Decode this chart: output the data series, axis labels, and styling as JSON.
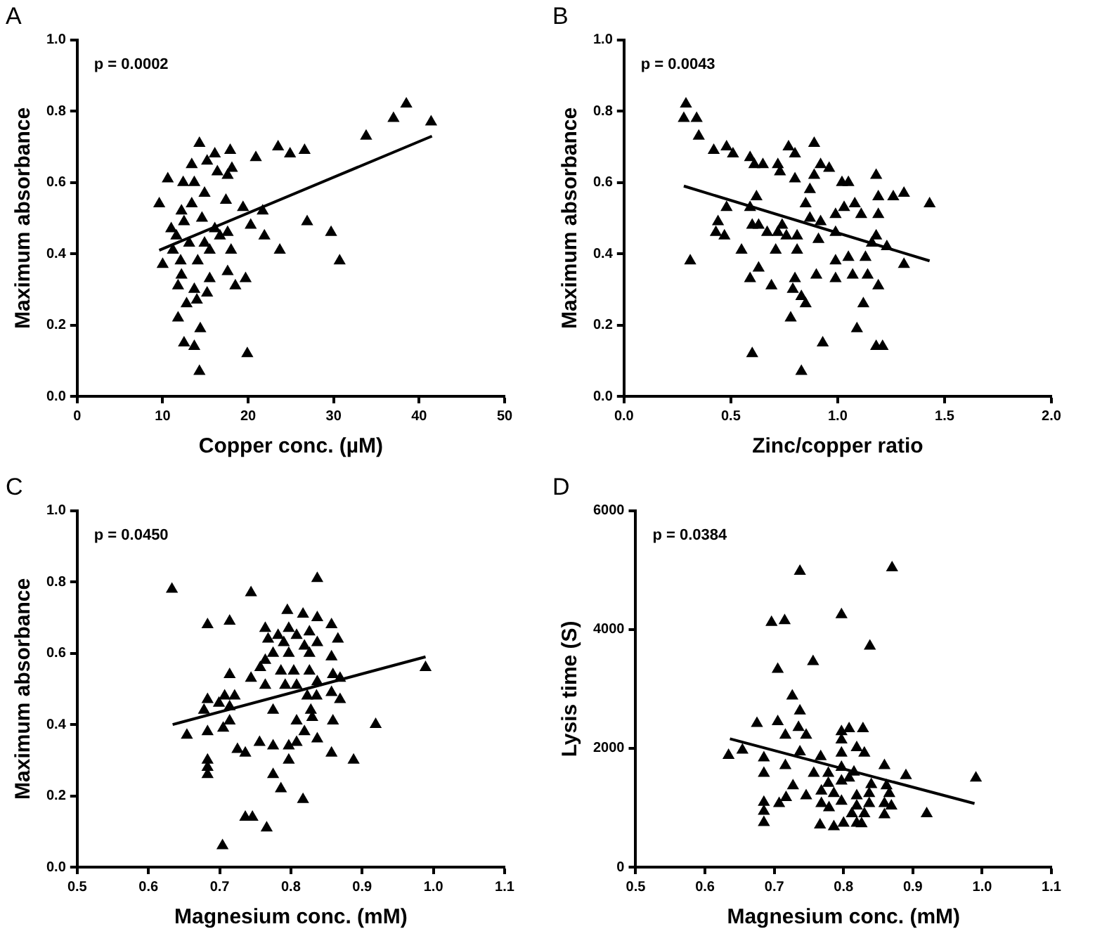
{
  "chart_data": [
    {
      "type": "scatter",
      "title": "A",
      "xlabel": "Copper conc. (µM)",
      "ylabel": "Maximum absorbance",
      "annotations": [
        "p = 0.0002"
      ],
      "grid": false,
      "legend": false,
      "xlim": [
        0,
        50
      ],
      "xticks": [
        0,
        10,
        20,
        30,
        40,
        50
      ],
      "ylim": [
        0,
        1
      ],
      "yticks": [
        {
          "value": 0,
          "label": "0.0"
        },
        {
          "value": 0.2,
          "label": "0.2"
        },
        {
          "value": 0.4,
          "label": "0.4"
        },
        {
          "value": 0.6,
          "label": "0.6"
        },
        {
          "value": 0.8,
          "label": "0.8"
        },
        {
          "value": 1,
          "label": "1.0"
        }
      ],
      "series": [
        {
          "type": "scatter",
          "marker": "triangle",
          "color": "#000000",
          "x": [
            38.5,
            37.0,
            41.4,
            33.8,
            14.3,
            17.9,
            23.5,
            24.9,
            26.6,
            20.9,
            16.1,
            15.2,
            13.4,
            18.1,
            16.4,
            10.6,
            12.4,
            13.7,
            17.6,
            14.9,
            17.4,
            9.6,
            19.4,
            12.2,
            13.4,
            21.7,
            14.6,
            26.9,
            20.3,
            29.7,
            11.0,
            12.5,
            16.1,
            17.6,
            21.9,
            11.6,
            13.1,
            14.9,
            16.7,
            18.0,
            23.7,
            15.5,
            11.2,
            10.0,
            12.1,
            14.1,
            30.7,
            17.6,
            19.7,
            12.2,
            15.5,
            18.5,
            11.8,
            13.7,
            15.2,
            12.8,
            14.0,
            11.8,
            14.4,
            12.5,
            13.7,
            19.9,
            14.3
          ],
          "values": [
            0.82,
            0.78,
            0.77,
            0.73,
            0.71,
            0.69,
            0.7,
            0.68,
            0.69,
            0.67,
            0.68,
            0.66,
            0.65,
            0.64,
            0.63,
            0.61,
            0.6,
            0.6,
            0.62,
            0.57,
            0.55,
            0.54,
            0.53,
            0.52,
            0.54,
            0.52,
            0.5,
            0.49,
            0.48,
            0.46,
            0.47,
            0.49,
            0.47,
            0.46,
            0.45,
            0.45,
            0.43,
            0.43,
            0.45,
            0.41,
            0.41,
            0.41,
            0.41,
            0.37,
            0.38,
            0.38,
            0.38,
            0.35,
            0.33,
            0.34,
            0.33,
            0.31,
            0.31,
            0.3,
            0.29,
            0.26,
            0.27,
            0.22,
            0.19,
            0.15,
            0.14,
            0.12,
            0.07
          ]
        },
        {
          "type": "line",
          "color": "#000000",
          "x": [
            9.6,
            41.5
          ],
          "values": [
            0.41,
            0.73
          ]
        }
      ]
    },
    {
      "type": "scatter",
      "title": "B",
      "xlabel": "Zinc/copper ratio",
      "ylabel": "Maximum absorbance",
      "annotations": [
        "p = 0.0043"
      ],
      "grid": false,
      "legend": false,
      "xlim": [
        0,
        2
      ],
      "xticks": [
        {
          "value": 0,
          "label": "0.0"
        },
        {
          "value": 0.5,
          "label": "0.5"
        },
        {
          "value": 1,
          "label": "1.0"
        },
        {
          "value": 1.5,
          "label": "1.5"
        },
        {
          "value": 2,
          "label": "2.0"
        }
      ],
      "ylim": [
        0,
        1
      ],
      "yticks": [
        {
          "value": 0,
          "label": "0.0"
        },
        {
          "value": 0.2,
          "label": "0.2"
        },
        {
          "value": 0.4,
          "label": "0.4"
        },
        {
          "value": 0.6,
          "label": "0.6"
        },
        {
          "value": 0.8,
          "label": "0.8"
        },
        {
          "value": 1,
          "label": "1.0"
        }
      ],
      "series": [
        {
          "type": "scatter",
          "marker": "triangle",
          "color": "#000000",
          "x": [
            0.29,
            0.28,
            0.34,
            0.35,
            0.42,
            0.48,
            0.51,
            0.59,
            0.61,
            0.65,
            0.72,
            0.77,
            0.8,
            0.89,
            0.73,
            0.8,
            0.92,
            0.96,
            0.89,
            1.02,
            1.05,
            1.18,
            0.87,
            0.62,
            1.19,
            1.26,
            1.31,
            1.43,
            0.85,
            0.48,
            0.59,
            1.03,
            1.08,
            1.11,
            0.99,
            1.19,
            0.44,
            0.87,
            0.92,
            0.6,
            0.63,
            0.74,
            0.43,
            0.67,
            0.72,
            0.76,
            0.81,
            0.99,
            0.47,
            0.91,
            1.18,
            1.16,
            1.23,
            0.55,
            0.71,
            0.81,
            1.05,
            0.99,
            1.13,
            0.31,
            1.31,
            0.63,
            0.59,
            0.9,
            0.99,
            1.07,
            1.14,
            0.69,
            0.8,
            0.79,
            0.83,
            0.85,
            1.19,
            1.12,
            0.78,
            1.09,
            0.93,
            1.18,
            1.21,
            0.6,
            0.83
          ],
          "values": [
            0.82,
            0.78,
            0.78,
            0.73,
            0.69,
            0.7,
            0.68,
            0.67,
            0.65,
            0.65,
            0.65,
            0.7,
            0.68,
            0.71,
            0.63,
            0.61,
            0.65,
            0.64,
            0.62,
            0.6,
            0.6,
            0.62,
            0.58,
            0.56,
            0.56,
            0.56,
            0.57,
            0.54,
            0.54,
            0.53,
            0.53,
            0.53,
            0.54,
            0.51,
            0.51,
            0.51,
            0.49,
            0.5,
            0.49,
            0.48,
            0.48,
            0.48,
            0.46,
            0.46,
            0.46,
            0.45,
            0.45,
            0.46,
            0.45,
            0.44,
            0.45,
            0.43,
            0.42,
            0.41,
            0.41,
            0.41,
            0.39,
            0.38,
            0.39,
            0.38,
            0.37,
            0.36,
            0.33,
            0.34,
            0.33,
            0.34,
            0.34,
            0.31,
            0.33,
            0.3,
            0.28,
            0.26,
            0.31,
            0.26,
            0.22,
            0.19,
            0.15,
            0.14,
            0.14,
            0.12,
            0.07
          ]
        },
        {
          "type": "line",
          "color": "#000000",
          "x": [
            0.28,
            1.43
          ],
          "values": [
            0.59,
            0.38
          ]
        }
      ]
    },
    {
      "type": "scatter",
      "title": "C",
      "xlabel": "Magnesium conc. (mM)",
      "ylabel": "Maximum absorbance",
      "annotations": [
        "p = 0.0450"
      ],
      "grid": false,
      "legend": false,
      "xlim": [
        0.5,
        1.1
      ],
      "xticks": [
        0.5,
        0.6,
        0.7,
        0.8,
        0.9,
        {
          "value": 1,
          "label": "1.0"
        },
        1.1
      ],
      "ylim": [
        0,
        1
      ],
      "yticks": [
        {
          "value": 0,
          "label": "0.0"
        },
        {
          "value": 0.2,
          "label": "0.2"
        },
        {
          "value": 0.4,
          "label": "0.4"
        },
        {
          "value": 0.6,
          "label": "0.6"
        },
        {
          "value": 0.8,
          "label": "0.8"
        },
        {
          "value": 1,
          "label": "1.0"
        }
      ],
      "series": [
        {
          "type": "scatter",
          "marker": "triangle",
          "color": "#000000",
          "x": [
            0.633,
            0.744,
            0.837,
            0.683,
            0.714,
            0.795,
            0.817,
            0.837,
            0.857,
            0.764,
            0.782,
            0.797,
            0.808,
            0.826,
            0.866,
            0.768,
            0.79,
            0.819,
            0.837,
            0.775,
            0.797,
            0.826,
            0.857,
            0.989,
            0.764,
            0.786,
            0.804,
            0.826,
            0.757,
            0.714,
            0.744,
            0.859,
            0.869,
            0.764,
            0.792,
            0.808,
            0.837,
            0.857,
            0.869,
            0.707,
            0.721,
            0.683,
            0.699,
            0.823,
            0.836,
            0.678,
            0.714,
            0.775,
            0.828,
            0.83,
            0.808,
            0.859,
            0.919,
            0.714,
            0.705,
            0.654,
            0.683,
            0.819,
            0.837,
            0.756,
            0.775,
            0.797,
            0.808,
            0.725,
            0.736,
            0.857,
            0.888,
            0.683,
            0.683,
            0.683,
            0.797,
            0.775,
            0.786,
            0.817,
            0.736,
            0.746,
            0.766,
            0.704
          ],
          "values": [
            0.78,
            0.77,
            0.81,
            0.68,
            0.69,
            0.72,
            0.71,
            0.7,
            0.68,
            0.67,
            0.65,
            0.67,
            0.65,
            0.66,
            0.64,
            0.64,
            0.63,
            0.62,
            0.63,
            0.6,
            0.6,
            0.6,
            0.59,
            0.56,
            0.58,
            0.55,
            0.55,
            0.55,
            0.56,
            0.54,
            0.53,
            0.54,
            0.53,
            0.51,
            0.51,
            0.51,
            0.52,
            0.49,
            0.47,
            0.48,
            0.48,
            0.47,
            0.46,
            0.48,
            0.48,
            0.44,
            0.45,
            0.44,
            0.44,
            0.42,
            0.41,
            0.41,
            0.4,
            0.41,
            0.39,
            0.37,
            0.38,
            0.38,
            0.36,
            0.35,
            0.34,
            0.34,
            0.35,
            0.33,
            0.32,
            0.32,
            0.3,
            0.3,
            0.28,
            0.26,
            0.3,
            0.26,
            0.22,
            0.19,
            0.14,
            0.14,
            0.11,
            0.06
          ]
        },
        {
          "type": "line",
          "color": "#000000",
          "x": [
            0.634,
            0.989
          ],
          "values": [
            0.4,
            0.59
          ]
        }
      ]
    },
    {
      "type": "scatter",
      "title": "D",
      "xlabel": "Magnesium conc. (mM)",
      "ylabel": "Lysis time (S)",
      "annotations": [
        "p = 0.0384"
      ],
      "grid": false,
      "legend": false,
      "xlim": [
        0.5,
        1.1
      ],
      "xticks": [
        0.5,
        0.6,
        0.7,
        0.8,
        0.9,
        {
          "value": 1,
          "label": "1.0"
        },
        1.1
      ],
      "ylim": [
        0,
        6000
      ],
      "yticks": [
        0,
        2000,
        4000,
        6000
      ],
      "series": [
        {
          "type": "scatter",
          "marker": "triangle",
          "color": "#000000",
          "x": [
            0.87,
            0.737,
            0.696,
            0.715,
            0.797,
            0.838,
            0.705,
            0.756,
            0.726,
            0.737,
            0.675,
            0.705,
            0.735,
            0.716,
            0.746,
            0.797,
            0.808,
            0.828,
            0.797,
            0.819,
            0.83,
            0.797,
            0.737,
            0.634,
            0.654,
            0.685,
            0.767,
            0.716,
            0.685,
            0.859,
            0.991,
            0.89,
            0.757,
            0.778,
            0.797,
            0.815,
            0.797,
            0.808,
            0.778,
            0.84,
            0.862,
            0.727,
            0.746,
            0.768,
            0.786,
            0.819,
            0.837,
            0.866,
            0.717,
            0.707,
            0.685,
            0.768,
            0.797,
            0.819,
            0.837,
            0.859,
            0.869,
            0.685,
            0.779,
            0.812,
            0.83,
            0.859,
            0.92,
            0.685,
            0.766,
            0.786,
            0.8,
            0.819,
            0.826
          ],
          "values": [
            5040,
            4980,
            4120,
            4150,
            4250,
            3720,
            3330,
            3460,
            2880,
            2630,
            2420,
            2450,
            2350,
            2220,
            2220,
            2280,
            2330,
            2330,
            2140,
            2010,
            1920,
            1920,
            1940,
            1880,
            1970,
            1840,
            1860,
            1710,
            1580,
            1710,
            1500,
            1540,
            1580,
            1580,
            1680,
            1600,
            1450,
            1500,
            1410,
            1390,
            1370,
            1370,
            1200,
            1280,
            1240,
            1200,
            1240,
            1240,
            1170,
            1070,
            1090,
            1070,
            1110,
            1030,
            1070,
            1070,
            1030,
            940,
            1000,
            900,
            900,
            880,
            900,
            750,
            710,
            680,
            740,
            740,
            730
          ]
        },
        {
          "type": "line",
          "color": "#000000",
          "x": [
            0.636,
            0.989
          ],
          "values": [
            2160,
            1070
          ]
        }
      ]
    }
  ]
}
